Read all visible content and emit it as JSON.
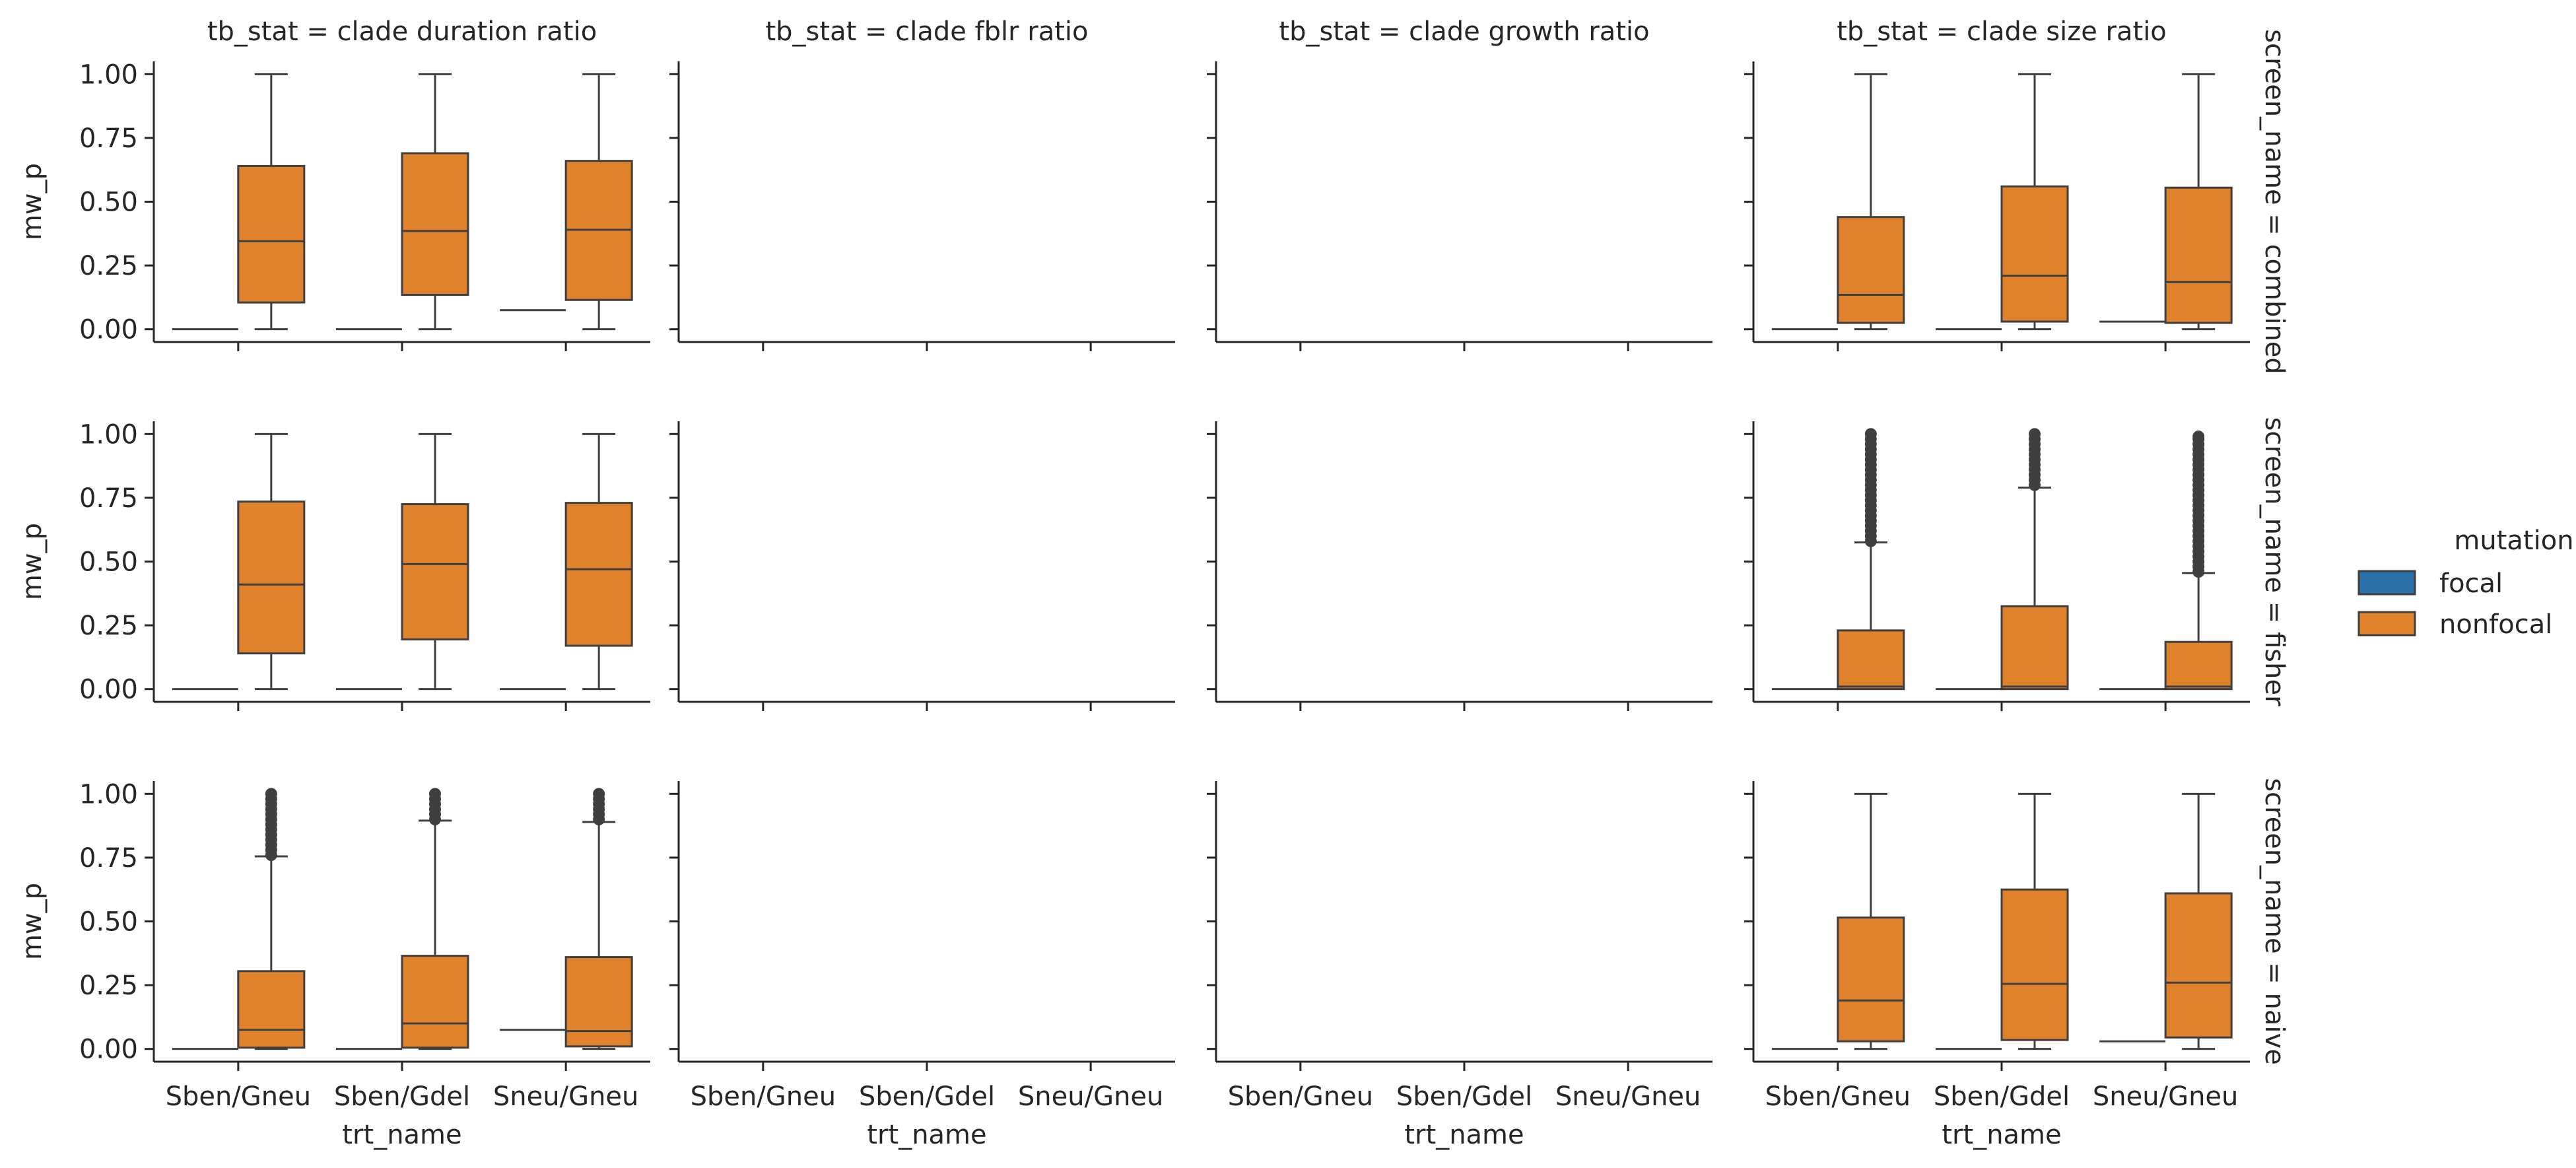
{
  "chart_data": {
    "type": "box",
    "facet_column_label": "tb_stat",
    "facet_row_label": "screen_name",
    "col_titles": [
      "tb_stat = clade duration ratio",
      "tb_stat = clade fblr ratio",
      "tb_stat = clade growth ratio",
      "tb_stat = clade size ratio"
    ],
    "row_titles": [
      "screen_name = combined",
      "screen_name = fisher",
      "screen_name = naive"
    ],
    "categories": [
      "Sben/Gneu",
      "Sben/Gdel",
      "Sneu/Gneu"
    ],
    "xlabel": "trt_name",
    "ylabel": "mw_p",
    "ylim": [
      -0.05,
      1.05
    ],
    "yticks": [
      "0.00",
      "0.25",
      "0.50",
      "0.75",
      "1.00"
    ],
    "legend": {
      "title": "mutation",
      "position": "right",
      "entries": [
        {
          "label": "focal",
          "color": "#2a71a9"
        },
        {
          "label": "nonfocal",
          "color": "#e0812c"
        }
      ]
    },
    "colors": {
      "focal": "#2a71a9",
      "nonfocal": "#e0812c",
      "line": "#3f3f3f"
    },
    "panels": [
      {
        "row": 0,
        "col": 0,
        "boxes": [
          {
            "series": "focal",
            "category": 0,
            "q1": 0.0,
            "median": 0.0,
            "q3": 0.0,
            "whislo": 0.0,
            "whishi": 0.0
          },
          {
            "series": "nonfocal",
            "category": 0,
            "q1": 0.105,
            "median": 0.345,
            "q3": 0.64,
            "whislo": 0.0,
            "whishi": 1.0
          },
          {
            "series": "focal",
            "category": 1,
            "q1": 0.0,
            "median": 0.0,
            "q3": 0.0,
            "whislo": 0.0,
            "whishi": 0.0
          },
          {
            "series": "nonfocal",
            "category": 1,
            "q1": 0.135,
            "median": 0.385,
            "q3": 0.69,
            "whislo": 0.0,
            "whishi": 1.0
          },
          {
            "series": "focal",
            "category": 2,
            "q1": 0.075,
            "median": 0.075,
            "q3": 0.075,
            "whislo": 0.075,
            "whishi": 0.075
          },
          {
            "series": "nonfocal",
            "category": 2,
            "q1": 0.115,
            "median": 0.39,
            "q3": 0.66,
            "whislo": 0.0,
            "whishi": 1.0
          }
        ]
      },
      {
        "row": 0,
        "col": 1,
        "boxes": []
      },
      {
        "row": 0,
        "col": 2,
        "boxes": []
      },
      {
        "row": 0,
        "col": 3,
        "boxes": [
          {
            "series": "focal",
            "category": 0,
            "q1": 0.0,
            "median": 0.0,
            "q3": 0.0,
            "whislo": 0.0,
            "whishi": 0.0
          },
          {
            "series": "nonfocal",
            "category": 0,
            "q1": 0.025,
            "median": 0.135,
            "q3": 0.44,
            "whislo": 0.0,
            "whishi": 1.0
          },
          {
            "series": "focal",
            "category": 1,
            "q1": 0.0,
            "median": 0.0,
            "q3": 0.0,
            "whislo": 0.0,
            "whishi": 0.0
          },
          {
            "series": "nonfocal",
            "category": 1,
            "q1": 0.03,
            "median": 0.21,
            "q3": 0.56,
            "whislo": 0.0,
            "whishi": 1.0
          },
          {
            "series": "focal",
            "category": 2,
            "q1": 0.03,
            "median": 0.03,
            "q3": 0.03,
            "whislo": 0.03,
            "whishi": 0.03
          },
          {
            "series": "nonfocal",
            "category": 2,
            "q1": 0.025,
            "median": 0.185,
            "q3": 0.555,
            "whislo": 0.0,
            "whishi": 1.0
          }
        ]
      },
      {
        "row": 1,
        "col": 0,
        "boxes": [
          {
            "series": "focal",
            "category": 0,
            "q1": 0.0,
            "median": 0.0,
            "q3": 0.0,
            "whislo": 0.0,
            "whishi": 0.0
          },
          {
            "series": "nonfocal",
            "category": 0,
            "q1": 0.14,
            "median": 0.41,
            "q3": 0.735,
            "whislo": 0.0,
            "whishi": 1.0
          },
          {
            "series": "focal",
            "category": 1,
            "q1": 0.0,
            "median": 0.0,
            "q3": 0.0,
            "whislo": 0.0,
            "whishi": 0.0
          },
          {
            "series": "nonfocal",
            "category": 1,
            "q1": 0.195,
            "median": 0.49,
            "q3": 0.725,
            "whislo": 0.0,
            "whishi": 1.0
          },
          {
            "series": "focal",
            "category": 2,
            "q1": 0.0,
            "median": 0.0,
            "q3": 0.0,
            "whislo": 0.0,
            "whishi": 0.0
          },
          {
            "series": "nonfocal",
            "category": 2,
            "q1": 0.17,
            "median": 0.47,
            "q3": 0.73,
            "whislo": 0.0,
            "whishi": 1.0
          }
        ]
      },
      {
        "row": 1,
        "col": 1,
        "boxes": []
      },
      {
        "row": 1,
        "col": 2,
        "boxes": []
      },
      {
        "row": 1,
        "col": 3,
        "boxes": [
          {
            "series": "focal",
            "category": 0,
            "q1": 0.0,
            "median": 0.0,
            "q3": 0.0,
            "whislo": 0.0,
            "whishi": 0.0
          },
          {
            "series": "nonfocal",
            "category": 0,
            "q1": 0.0,
            "median": 0.01,
            "q3": 0.23,
            "whislo": 0.0,
            "whishi": 0.575,
            "fliers": [
              0.58,
              0.6,
              0.62,
              0.64,
              0.66,
              0.68,
              0.7,
              0.72,
              0.74,
              0.76,
              0.78,
              0.8,
              0.82,
              0.84,
              0.86,
              0.88,
              0.9,
              0.92,
              0.94,
              0.96,
              0.98,
              1.0
            ]
          },
          {
            "series": "focal",
            "category": 1,
            "q1": 0.0,
            "median": 0.0,
            "q3": 0.0,
            "whislo": 0.0,
            "whishi": 0.0
          },
          {
            "series": "nonfocal",
            "category": 1,
            "q1": 0.0,
            "median": 0.01,
            "q3": 0.325,
            "whislo": 0.0,
            "whishi": 0.79,
            "fliers": [
              0.8,
              0.82,
              0.84,
              0.86,
              0.88,
              0.9,
              0.92,
              0.94,
              0.96,
              0.98,
              1.0
            ]
          },
          {
            "series": "focal",
            "category": 2,
            "q1": 0.0,
            "median": 0.0,
            "q3": 0.0,
            "whislo": 0.0,
            "whishi": 0.0
          },
          {
            "series": "nonfocal",
            "category": 2,
            "q1": 0.0,
            "median": 0.01,
            "q3": 0.185,
            "whislo": 0.0,
            "whishi": 0.455,
            "fliers": [
              0.46,
              0.48,
              0.5,
              0.52,
              0.54,
              0.56,
              0.58,
              0.6,
              0.62,
              0.64,
              0.66,
              0.68,
              0.7,
              0.72,
              0.74,
              0.76,
              0.78,
              0.8,
              0.82,
              0.84,
              0.86,
              0.88,
              0.9,
              0.92,
              0.94,
              0.96,
              0.98,
              0.99
            ]
          }
        ]
      },
      {
        "row": 2,
        "col": 0,
        "boxes": [
          {
            "series": "focal",
            "category": 0,
            "q1": 0.0,
            "median": 0.0,
            "q3": 0.0,
            "whislo": 0.0,
            "whishi": 0.0
          },
          {
            "series": "nonfocal",
            "category": 0,
            "q1": 0.005,
            "median": 0.075,
            "q3": 0.305,
            "whislo": 0.0,
            "whishi": 0.755,
            "fliers": [
              0.76,
              0.78,
              0.8,
              0.82,
              0.84,
              0.86,
              0.88,
              0.9,
              0.92,
              0.94,
              0.96,
              0.98,
              1.0
            ]
          },
          {
            "series": "focal",
            "category": 1,
            "q1": 0.0,
            "median": 0.0,
            "q3": 0.0,
            "whislo": 0.0,
            "whishi": 0.0
          },
          {
            "series": "nonfocal",
            "category": 1,
            "q1": 0.005,
            "median": 0.1,
            "q3": 0.365,
            "whislo": 0.0,
            "whishi": 0.895,
            "fliers": [
              0.9,
              0.92,
              0.94,
              0.96,
              0.98,
              1.0
            ]
          },
          {
            "series": "focal",
            "category": 2,
            "q1": 0.075,
            "median": 0.075,
            "q3": 0.075,
            "whislo": 0.075,
            "whishi": 0.075
          },
          {
            "series": "nonfocal",
            "category": 2,
            "q1": 0.01,
            "median": 0.07,
            "q3": 0.36,
            "whislo": 0.0,
            "whishi": 0.89,
            "fliers": [
              0.9,
              0.92,
              0.94,
              0.96,
              0.98,
              1.0
            ]
          }
        ]
      },
      {
        "row": 2,
        "col": 1,
        "boxes": []
      },
      {
        "row": 2,
        "col": 2,
        "boxes": []
      },
      {
        "row": 2,
        "col": 3,
        "boxes": [
          {
            "series": "focal",
            "category": 0,
            "q1": 0.0,
            "median": 0.0,
            "q3": 0.0,
            "whislo": 0.0,
            "whishi": 0.0
          },
          {
            "series": "nonfocal",
            "category": 0,
            "q1": 0.03,
            "median": 0.19,
            "q3": 0.515,
            "whislo": 0.0,
            "whishi": 1.0
          },
          {
            "series": "focal",
            "category": 1,
            "q1": 0.0,
            "median": 0.0,
            "q3": 0.0,
            "whislo": 0.0,
            "whishi": 0.0
          },
          {
            "series": "nonfocal",
            "category": 1,
            "q1": 0.035,
            "median": 0.255,
            "q3": 0.625,
            "whislo": 0.0,
            "whishi": 1.0
          },
          {
            "series": "focal",
            "category": 2,
            "q1": 0.03,
            "median": 0.03,
            "q3": 0.03,
            "whislo": 0.03,
            "whishi": 0.03
          },
          {
            "series": "nonfocal",
            "category": 2,
            "q1": 0.045,
            "median": 0.26,
            "q3": 0.61,
            "whislo": 0.0,
            "whishi": 1.0
          }
        ]
      }
    ]
  }
}
